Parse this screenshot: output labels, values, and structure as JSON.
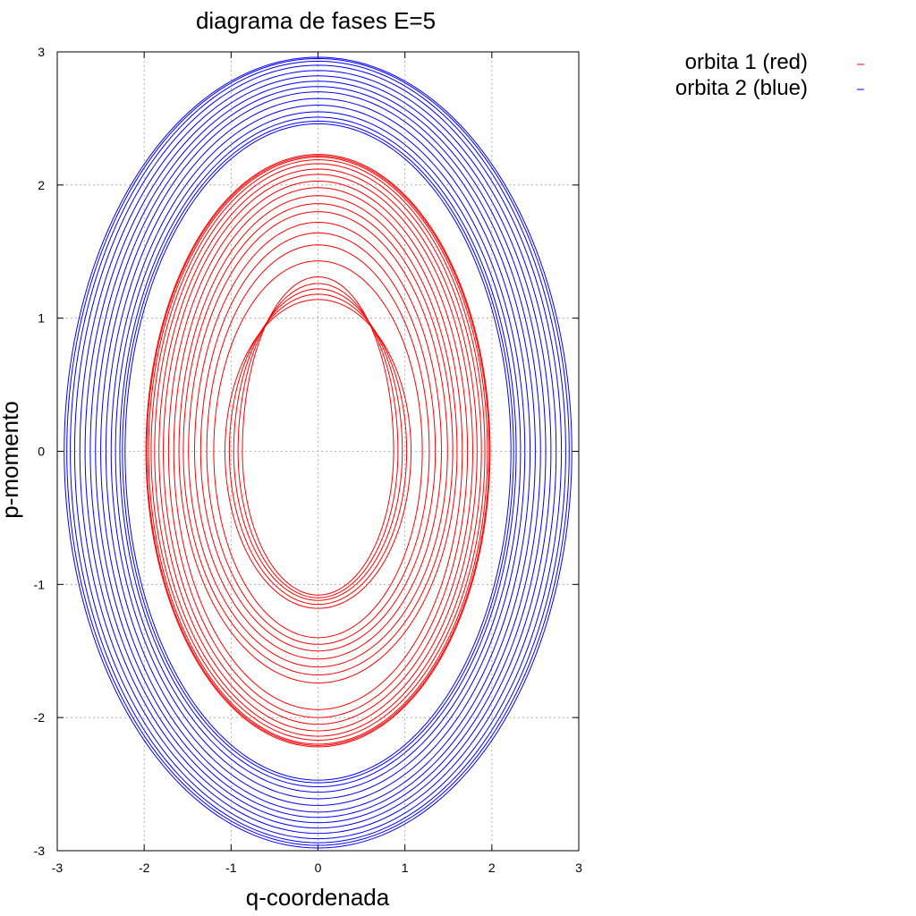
{
  "chart_data": {
    "type": "line",
    "title": "diagrama de fases E=5",
    "xlabel": "q-coordenada",
    "ylabel": "p-momento",
    "xlim": [
      -3,
      3
    ],
    "ylim": [
      -3,
      3
    ],
    "x_ticks": [
      "-3",
      "-2",
      "-1",
      "0",
      "1",
      "2",
      "3"
    ],
    "y_ticks": [
      "3",
      "2",
      "1",
      "0",
      "-1",
      "-2",
      "-3"
    ],
    "grid": true,
    "legend_position": "top-right outside plot",
    "series": [
      {
        "name": "orbita 1 (red)",
        "color": "#ff0000",
        "rings": [
          {
            "q_amp": 0.87,
            "p_max": 1.31,
            "p_min": -1.08
          },
          {
            "q_amp": 0.92,
            "p_max": 1.26,
            "p_min": -1.1
          },
          {
            "q_amp": 0.97,
            "p_max": 1.22,
            "p_min": -1.12
          },
          {
            "q_amp": 1.02,
            "p_max": 1.18,
            "p_min": -1.15
          },
          {
            "q_amp": 1.07,
            "p_max": 1.14,
            "p_min": -1.18
          },
          {
            "q_amp": 1.2,
            "p_max": 1.43,
            "p_min": -1.4
          },
          {
            "q_amp": 1.28,
            "p_max": 1.55,
            "p_min": -1.45
          },
          {
            "q_amp": 1.35,
            "p_max": 1.64,
            "p_min": -1.5
          },
          {
            "q_amp": 1.42,
            "p_max": 1.72,
            "p_min": -1.56
          },
          {
            "q_amp": 1.49,
            "p_max": 1.8,
            "p_min": -1.62
          },
          {
            "q_amp": 1.55,
            "p_max": 1.86,
            "p_min": -1.68
          },
          {
            "q_amp": 1.6,
            "p_max": 1.92,
            "p_min": -1.74
          },
          {
            "q_amp": 1.66,
            "p_max": 1.98,
            "p_min": -1.94
          },
          {
            "q_amp": 1.72,
            "p_max": 2.03,
            "p_min": -2.0
          },
          {
            "q_amp": 1.78,
            "p_max": 2.08,
            "p_min": -2.05
          },
          {
            "q_amp": 1.83,
            "p_max": 2.12,
            "p_min": -2.1
          },
          {
            "q_amp": 1.88,
            "p_max": 2.16,
            "p_min": -2.14
          },
          {
            "q_amp": 1.92,
            "p_max": 2.19,
            "p_min": -2.17
          },
          {
            "q_amp": 1.95,
            "p_max": 2.21,
            "p_min": -2.2
          },
          {
            "q_amp": 1.97,
            "p_max": 2.22,
            "p_min": -2.21
          },
          {
            "q_amp": 1.98,
            "p_max": 2.23,
            "p_min": -2.22
          }
        ]
      },
      {
        "name": "orbita 2 (blue)",
        "color": "#0000ff",
        "rings": [
          {
            "q_amp": 2.22,
            "p_max": 2.46,
            "p_min": -2.47
          },
          {
            "q_amp": 2.25,
            "p_max": 2.48,
            "p_min": -2.49
          },
          {
            "q_amp": 2.28,
            "p_max": 2.51,
            "p_min": -2.52
          },
          {
            "q_amp": 2.33,
            "p_max": 2.55,
            "p_min": -2.56
          },
          {
            "q_amp": 2.38,
            "p_max": 2.6,
            "p_min": -2.61
          },
          {
            "q_amp": 2.44,
            "p_max": 2.65,
            "p_min": -2.66
          },
          {
            "q_amp": 2.5,
            "p_max": 2.7,
            "p_min": -2.71
          },
          {
            "q_amp": 2.56,
            "p_max": 2.74,
            "p_min": -2.75
          },
          {
            "q_amp": 2.62,
            "p_max": 2.78,
            "p_min": -2.79
          },
          {
            "q_amp": 2.68,
            "p_max": 2.82,
            "p_min": -2.83
          },
          {
            "q_amp": 2.74,
            "p_max": 2.86,
            "p_min": -2.87
          },
          {
            "q_amp": 2.8,
            "p_max": 2.9,
            "p_min": -2.91
          },
          {
            "q_amp": 2.85,
            "p_max": 2.93,
            "p_min": -2.94
          },
          {
            "q_amp": 2.89,
            "p_max": 2.95,
            "p_min": -2.96
          },
          {
            "q_amp": 2.92,
            "p_max": 2.96,
            "p_min": -2.98
          }
        ]
      }
    ]
  }
}
